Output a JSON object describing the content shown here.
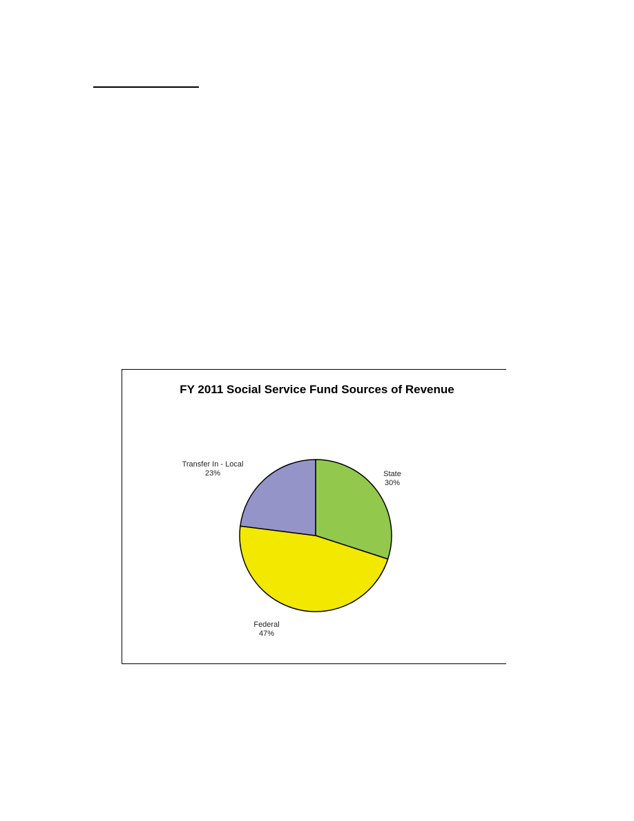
{
  "chart_data": {
    "type": "pie",
    "title": "FY 2011 Social Service Fund Sources of Revenue",
    "slices": [
      {
        "label": "State",
        "percent_label": "30%",
        "value": 30,
        "color": "#92c84b"
      },
      {
        "label": "Federal",
        "percent_label": "47%",
        "value": 47,
        "color": "#f2e800"
      },
      {
        "label": "Transfer In - Local",
        "percent_label": "23%",
        "value": 23,
        "color": "#9494c8"
      }
    ],
    "start": "12 o'clock",
    "direction": "clockwise",
    "legend": "none (category labels next to slices)"
  }
}
